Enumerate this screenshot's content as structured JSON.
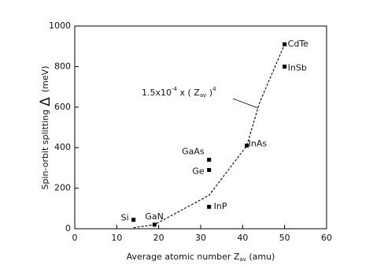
{
  "chart_data": {
    "type": "scatter",
    "x": [
      14,
      19,
      32,
      32,
      32,
      41,
      50,
      50
    ],
    "values": [
      44,
      20,
      108,
      290,
      340,
      410,
      800,
      910
    ],
    "point_labels": [
      "Si",
      "GaN",
      "InP",
      "Ge",
      "GaAs",
      "InAs",
      "InSb",
      "CdTe"
    ],
    "color": "#000000",
    "fit": {
      "x": [
        14,
        19,
        32,
        41,
        44,
        50
      ],
      "values": [
        5,
        20,
        165,
        410,
        620,
        910
      ]
    },
    "annotation": [
      "1.5x10",
      "-4",
      " x ( Z",
      "av",
      " )",
      "4"
    ],
    "xlabel": [
      "Average atomic number Z",
      "av",
      " (amu)"
    ],
    "ylabel": [
      "Spin-orbit splitting",
      "Δ",
      "(meV)"
    ],
    "xlim": [
      0,
      60
    ],
    "xticks": [
      0,
      10,
      20,
      30,
      40,
      50,
      60
    ],
    "ylim": [
      0,
      1000
    ],
    "yticks": [
      0,
      200,
      400,
      600,
      800,
      1000
    ]
  }
}
